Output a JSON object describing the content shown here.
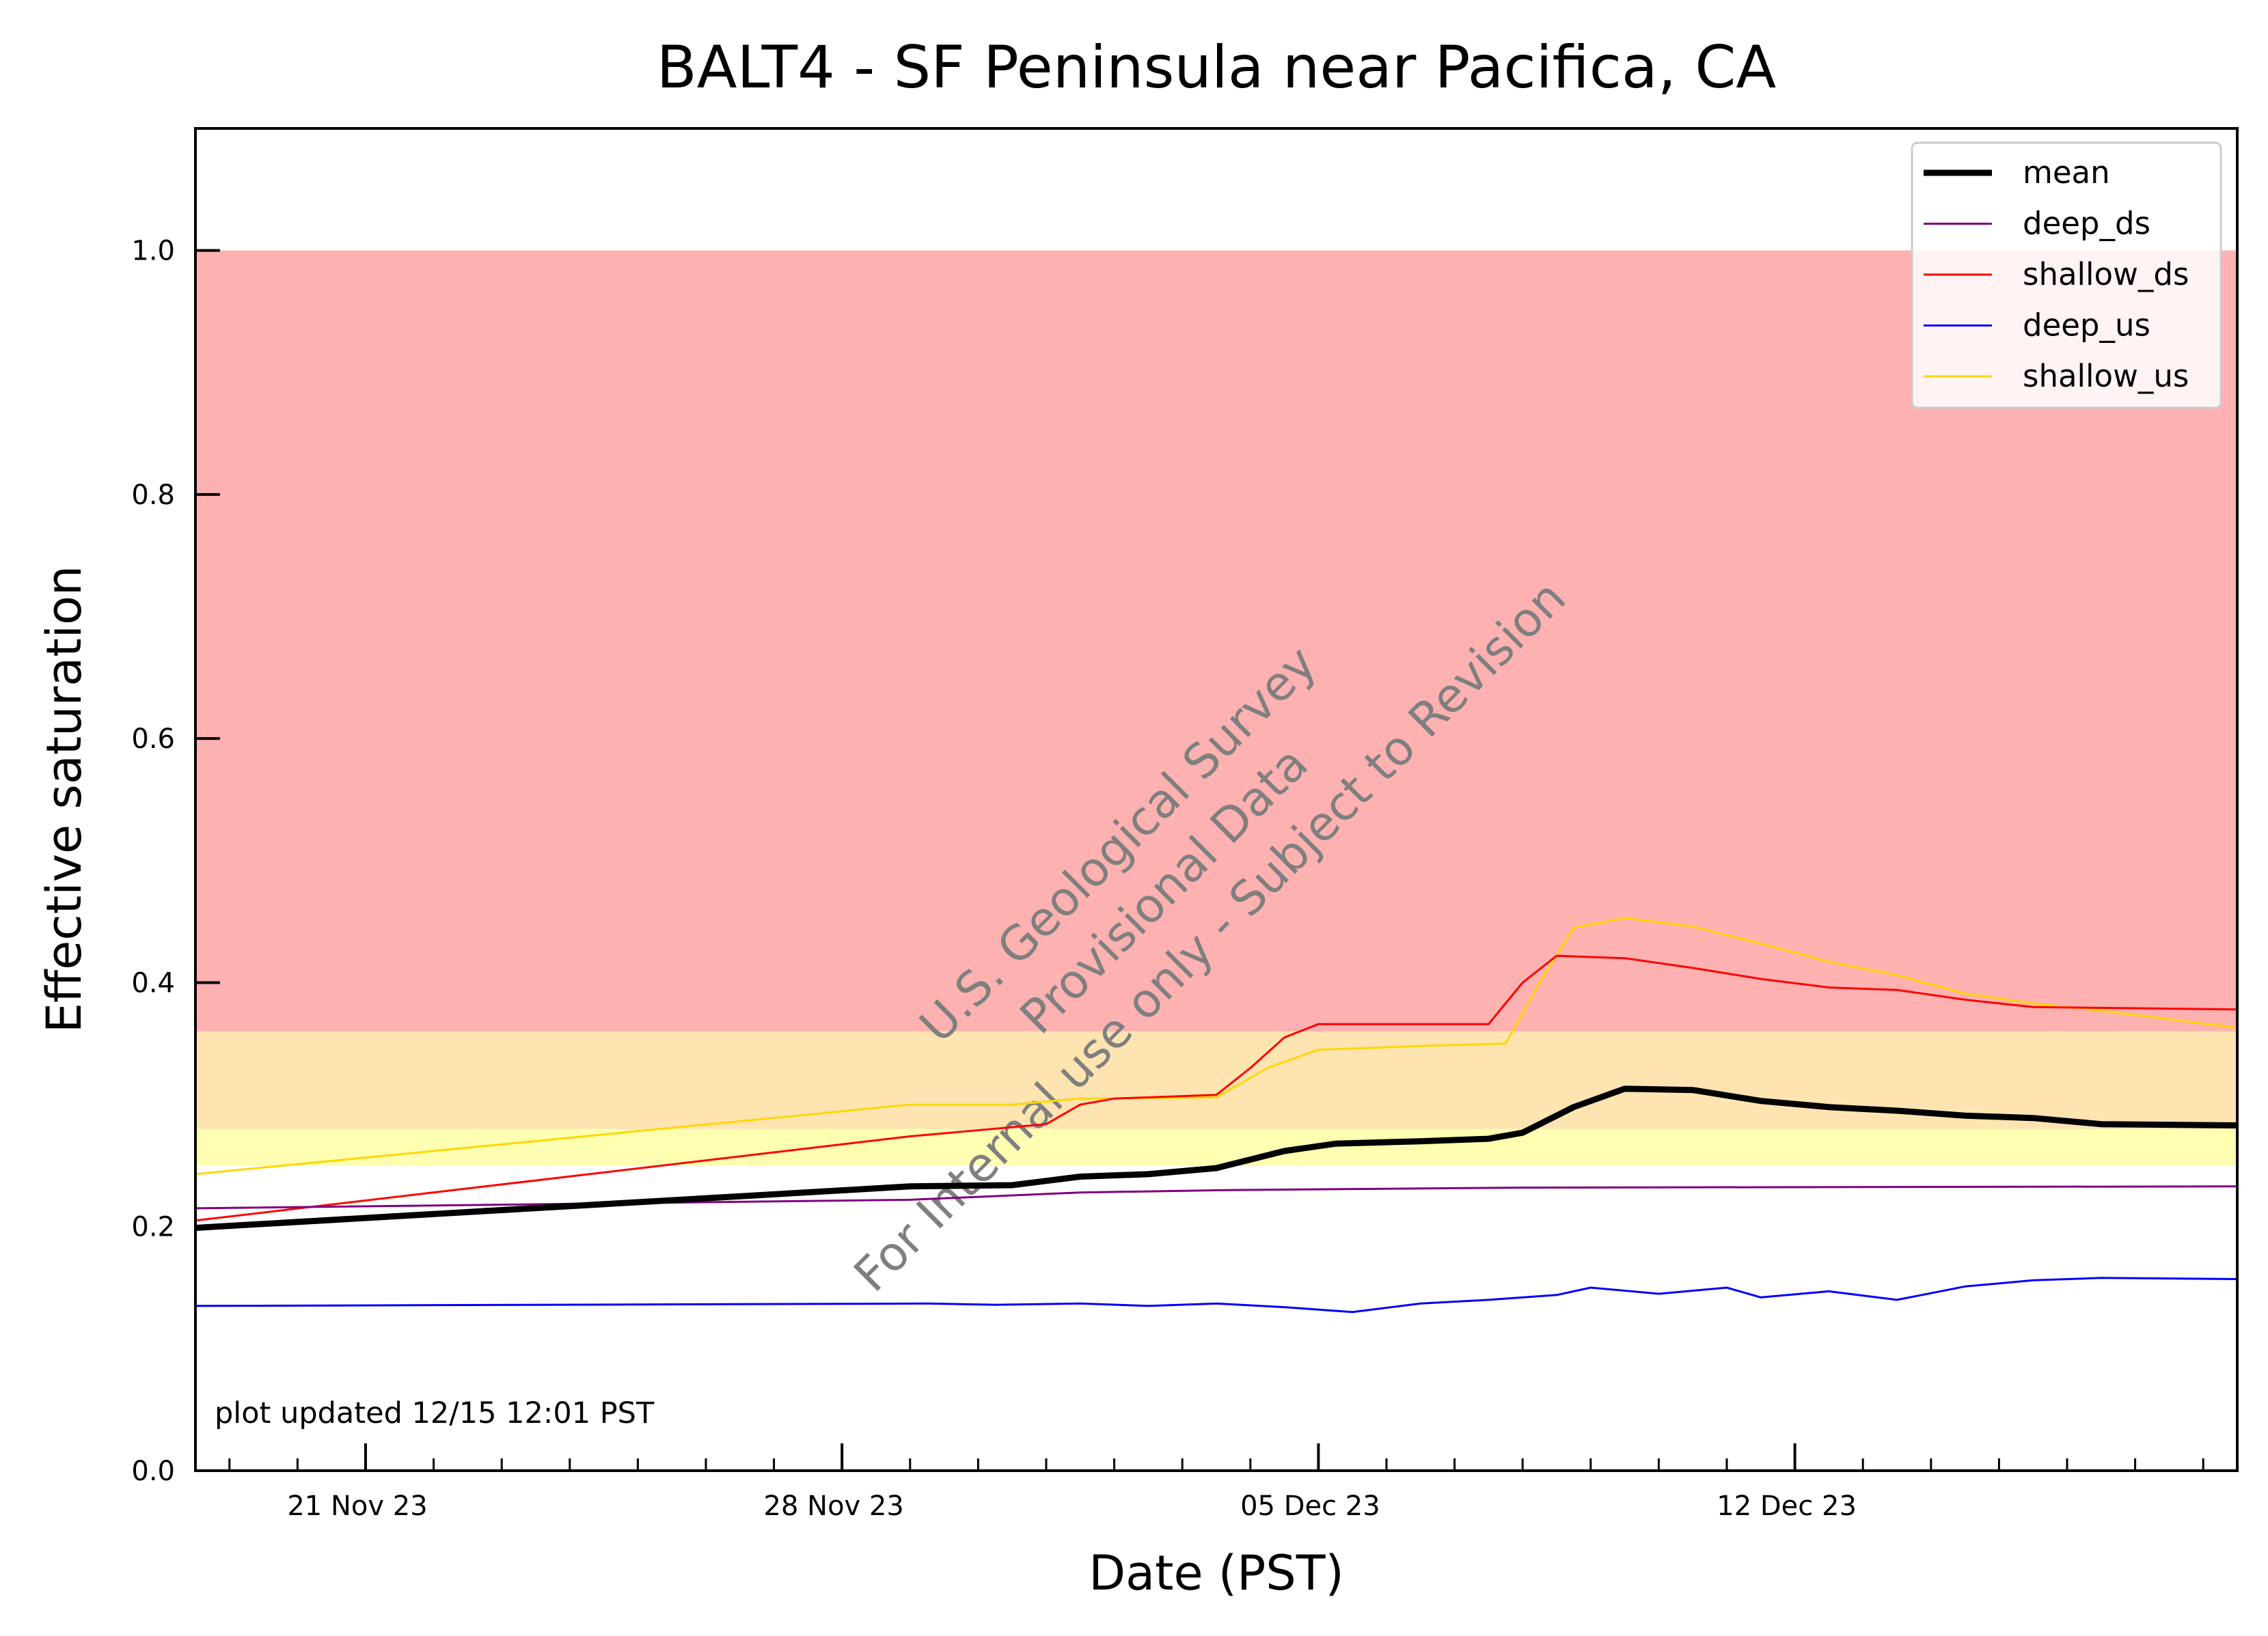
{
  "chart_data": {
    "type": "line",
    "title": "BALT4 - SF Peninsula near Pacifica, CA",
    "xlabel": "Date (PST)",
    "ylabel": "Effective saturation",
    "xlim": [
      "2023-11-18 12:00",
      "2023-12-18 12:00"
    ],
    "ylim": [
      0,
      1.1
    ],
    "x_ticks": [
      {
        "date": "2023-11-21",
        "label": "21 Nov 23"
      },
      {
        "date": "2023-11-28",
        "label": "28 Nov 23"
      },
      {
        "date": "2023-12-05",
        "label": "05 Dec 23"
      },
      {
        "date": "2023-12-12",
        "label": "12 Dec 23"
      }
    ],
    "y_ticks": [
      {
        "value": 0.0,
        "label": "0.0"
      },
      {
        "value": 0.2,
        "label": "0.2"
      },
      {
        "value": 0.4,
        "label": "0.4"
      },
      {
        "value": 0.6,
        "label": "0.6"
      },
      {
        "value": 0.8,
        "label": "0.8"
      },
      {
        "value": 1.0,
        "label": "1.0"
      }
    ],
    "bands": [
      {
        "from": 0.25,
        "to": 0.28,
        "color": "#ffffb2"
      },
      {
        "from": 0.28,
        "to": 0.36,
        "color": "#fee4b0"
      },
      {
        "from": 0.36,
        "to": 1.0,
        "color": "#feb1b1"
      }
    ],
    "grid": false,
    "legend_position": "top-right",
    "series": [
      {
        "name": "mean",
        "color": "#000000",
        "values": [
          [
            "2023-11-18 12:00",
            0.199
          ],
          [
            "2023-11-29 00:00",
            0.233
          ],
          [
            "2023-11-30 12:00",
            0.234
          ],
          [
            "2023-12-01 12:00",
            0.241
          ],
          [
            "2023-12-02 12:00",
            0.243
          ],
          [
            "2023-12-03 12:00",
            0.248
          ],
          [
            "2023-12-04 12:00",
            0.262
          ],
          [
            "2023-12-05 06:00",
            0.268
          ],
          [
            "2023-12-06 12:00",
            0.27
          ],
          [
            "2023-12-07 12:00",
            0.272
          ],
          [
            "2023-12-08 00:00",
            0.277
          ],
          [
            "2023-12-08 18:00",
            0.298
          ],
          [
            "2023-12-09 12:00",
            0.313
          ],
          [
            "2023-12-10 12:00",
            0.312
          ],
          [
            "2023-12-11 12:00",
            0.303
          ],
          [
            "2023-12-12 12:00",
            0.298
          ],
          [
            "2023-12-13 12:00",
            0.295
          ],
          [
            "2023-12-14 12:00",
            0.291
          ],
          [
            "2023-12-15 12:00",
            0.289
          ],
          [
            "2023-12-16 12:00",
            0.284
          ],
          [
            "2023-12-18 12:00",
            0.283
          ]
        ]
      },
      {
        "name": "deep_ds",
        "color": "#800080",
        "values": [
          [
            "2023-11-18 12:00",
            0.215
          ],
          [
            "2023-11-29 00:00",
            0.222
          ],
          [
            "2023-12-01 12:00",
            0.228
          ],
          [
            "2023-12-03 18:00",
            0.23
          ],
          [
            "2023-12-08 00:00",
            0.232
          ],
          [
            "2023-12-18 12:00",
            0.233
          ]
        ]
      },
      {
        "name": "shallow_ds",
        "color": "#ff0000",
        "values": [
          [
            "2023-11-18 12:00",
            0.205
          ],
          [
            "2023-11-29 00:00",
            0.274
          ],
          [
            "2023-12-01 00:00",
            0.284
          ],
          [
            "2023-12-01 12:00",
            0.3
          ],
          [
            "2023-12-02 00:00",
            0.305
          ],
          [
            "2023-12-03 12:00",
            0.308
          ],
          [
            "2023-12-04 00:00",
            0.33
          ],
          [
            "2023-12-04 12:00",
            0.355
          ],
          [
            "2023-12-05 00:00",
            0.366
          ],
          [
            "2023-12-06 12:00",
            0.366
          ],
          [
            "2023-12-07 12:00",
            0.366
          ],
          [
            "2023-12-08 00:00",
            0.4
          ],
          [
            "2023-12-08 12:00",
            0.422
          ],
          [
            "2023-12-09 12:00",
            0.42
          ],
          [
            "2023-12-10 12:00",
            0.412
          ],
          [
            "2023-12-11 12:00",
            0.403
          ],
          [
            "2023-12-12 12:00",
            0.396
          ],
          [
            "2023-12-13 12:00",
            0.394
          ],
          [
            "2023-12-14 12:00",
            0.386
          ],
          [
            "2023-12-15 12:00",
            0.38
          ],
          [
            "2023-12-18 12:00",
            0.378
          ]
        ]
      },
      {
        "name": "deep_us",
        "color": "#0000ff",
        "values": [
          [
            "2023-11-18 12:00",
            0.135
          ],
          [
            "2023-11-29 06:00",
            0.137
          ],
          [
            "2023-11-30 06:00",
            0.136
          ],
          [
            "2023-12-01 12:00",
            0.137
          ],
          [
            "2023-12-02 12:00",
            0.135
          ],
          [
            "2023-12-03 12:00",
            0.137
          ],
          [
            "2023-12-04 12:00",
            0.134
          ],
          [
            "2023-12-05 12:00",
            0.13
          ],
          [
            "2023-12-06 12:00",
            0.137
          ],
          [
            "2023-12-07 12:00",
            0.14
          ],
          [
            "2023-12-08 12:00",
            0.144
          ],
          [
            "2023-12-09 00:00",
            0.15
          ],
          [
            "2023-12-10 00:00",
            0.145
          ],
          [
            "2023-12-11 00:00",
            0.15
          ],
          [
            "2023-12-11 12:00",
            0.142
          ],
          [
            "2023-12-12 12:00",
            0.147
          ],
          [
            "2023-12-13 12:00",
            0.14
          ],
          [
            "2023-12-14 12:00",
            0.151
          ],
          [
            "2023-12-15 12:00",
            0.156
          ],
          [
            "2023-12-16 12:00",
            0.158
          ],
          [
            "2023-12-18 12:00",
            0.157
          ]
        ]
      },
      {
        "name": "shallow_us",
        "color": "#ffd700",
        "values": [
          [
            "2023-11-18 12:00",
            0.243
          ],
          [
            "2023-11-29 00:00",
            0.3
          ],
          [
            "2023-11-30 12:00",
            0.3
          ],
          [
            "2023-12-01 12:00",
            0.305
          ],
          [
            "2023-12-03 12:00",
            0.306
          ],
          [
            "2023-12-04 06:00",
            0.33
          ],
          [
            "2023-12-05 00:00",
            0.345
          ],
          [
            "2023-12-06 12:00",
            0.348
          ],
          [
            "2023-12-07 18:00",
            0.35
          ],
          [
            "2023-12-08 06:00",
            0.4
          ],
          [
            "2023-12-08 18:00",
            0.445
          ],
          [
            "2023-12-09 12:00",
            0.453
          ],
          [
            "2023-12-10 12:00",
            0.446
          ],
          [
            "2023-12-11 12:00",
            0.432
          ],
          [
            "2023-12-12 12:00",
            0.417
          ],
          [
            "2023-12-13 12:00",
            0.406
          ],
          [
            "2023-12-14 12:00",
            0.391
          ],
          [
            "2023-12-15 12:00",
            0.383
          ],
          [
            "2023-12-16 12:00",
            0.377
          ],
          [
            "2023-12-18 12:00",
            0.363
          ]
        ]
      }
    ],
    "annotation": "plot updated 12/15 12:01  PST",
    "watermark": [
      "U.S. Geological Survey",
      "Provisional Data",
      "For Internal use only - Subject to Revision"
    ]
  }
}
